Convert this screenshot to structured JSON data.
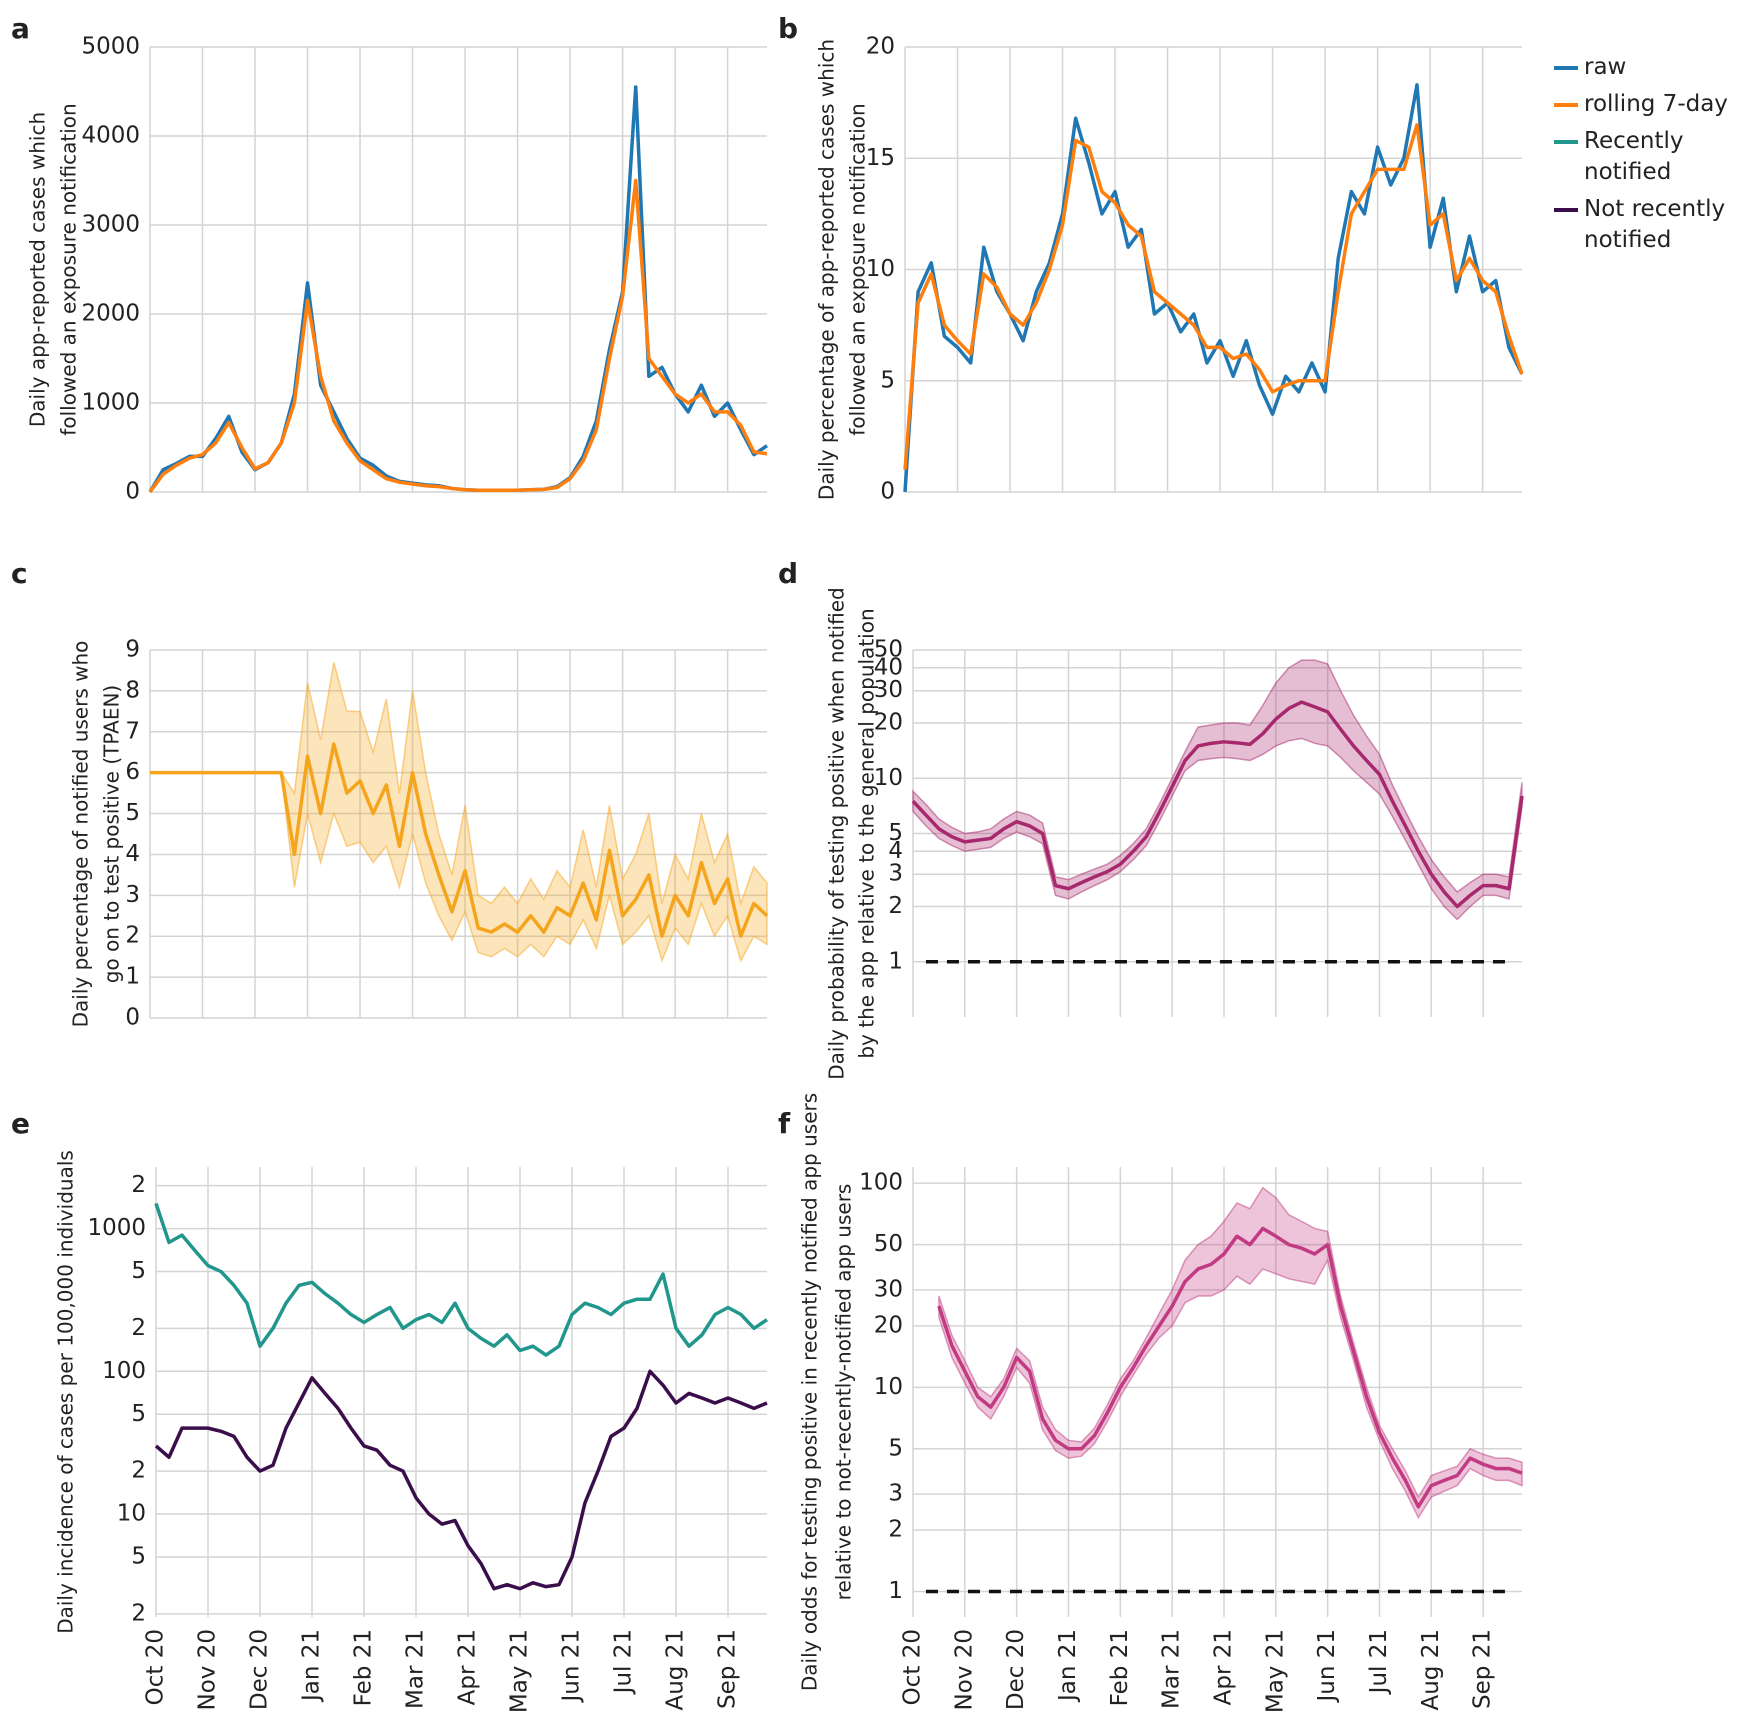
{
  "chart_data": [
    {
      "type": "line",
      "label": "a",
      "ylabel": [
        "Daily app-reported cases which",
        "followed an exposure notification"
      ],
      "ylim": [
        0,
        5000
      ],
      "yticks": [
        0,
        1000,
        2000,
        3000,
        4000,
        5000
      ],
      "grid": true,
      "series": [
        {
          "name": "raw",
          "color": "#1f77b4",
          "values": [
            0,
            250,
            320,
            400,
            400,
            600,
            850,
            450,
            250,
            330,
            550,
            1100,
            2350,
            1200,
            900,
            600,
            380,
            300,
            180,
            120,
            100,
            80,
            70,
            40,
            25,
            20,
            20,
            20,
            20,
            25,
            30,
            60,
            160,
            400,
            800,
            1600,
            2250,
            4550,
            1300,
            1400,
            1100,
            900,
            1200,
            850,
            1000,
            700,
            420,
            520
          ]
        },
        {
          "name": "rolling 7-day",
          "color": "#ff7f0e",
          "values": [
            0,
            200,
            300,
            380,
            420,
            550,
            780,
            500,
            260,
            330,
            550,
            1000,
            2150,
            1300,
            800,
            550,
            350,
            250,
            150,
            110,
            90,
            70,
            60,
            40,
            25,
            20,
            20,
            20,
            20,
            25,
            30,
            50,
            150,
            350,
            700,
            1500,
            2200,
            3500,
            1500,
            1300,
            1100,
            1000,
            1100,
            900,
            900,
            750,
            450,
            430
          ]
        }
      ]
    },
    {
      "type": "line",
      "label": "b",
      "ylabel": [
        "Daily percentage of app-reported cases which",
        "followed an exposure notification"
      ],
      "ylim": [
        0,
        20
      ],
      "yticks": [
        0,
        5,
        10,
        15,
        20
      ],
      "grid": true,
      "series": [
        {
          "name": "raw",
          "color": "#1f77b4",
          "values": [
            0,
            9,
            10.3,
            7,
            6.5,
            5.8,
            11,
            9,
            8,
            6.8,
            9,
            10.3,
            12.5,
            16.8,
            14.8,
            12.5,
            13.5,
            11,
            11.8,
            8,
            8.5,
            7.2,
            8,
            5.8,
            6.8,
            5.2,
            6.8,
            4.8,
            3.5,
            5.2,
            4.5,
            5.8,
            4.5,
            10.5,
            13.5,
            12.5,
            15.5,
            13.8,
            15,
            18.3,
            11,
            13.2,
            9,
            11.5,
            9,
            9.5,
            6.5,
            5.3
          ]
        },
        {
          "name": "rolling 7-day",
          "color": "#ff7f0e",
          "values": [
            1,
            8.5,
            9.8,
            7.5,
            6.8,
            6.2,
            9.8,
            9.2,
            8,
            7.5,
            8.5,
            10,
            12,
            15.8,
            15.5,
            13.5,
            13,
            12,
            11.5,
            9,
            8.5,
            8,
            7.5,
            6.5,
            6.5,
            6,
            6.2,
            5.5,
            4.5,
            4.8,
            5,
            5,
            5,
            9,
            12.5,
            13.5,
            14.5,
            14.5,
            14.5,
            16.5,
            12,
            12.5,
            9.5,
            10.5,
            9.5,
            9,
            7,
            5.3
          ]
        }
      ]
    },
    {
      "type": "line",
      "label": "c",
      "ylabel": [
        "Daily percentage of notified users who",
        "go on to test positive (TPAEN)"
      ],
      "ylim": [
        0,
        9
      ],
      "yticks": [
        0,
        1,
        2,
        3,
        4,
        5,
        6,
        7,
        8,
        9
      ],
      "grid": true,
      "series": [
        {
          "color": "#f5a51d",
          "values": [
            6,
            6,
            6,
            6,
            6,
            6,
            6,
            6,
            6,
            6,
            6,
            4,
            6.4,
            5,
            6.7,
            5.5,
            5.8,
            5,
            5.7,
            4.2,
            6,
            4.5,
            3.5,
            2.6,
            3.6,
            2.2,
            2.1,
            2.3,
            2.1,
            2.5,
            2.1,
            2.7,
            2.5,
            3.3,
            2.4,
            4.1,
            2.5,
            2.9,
            3.5,
            2,
            3,
            2.5,
            3.8,
            2.8,
            3.4,
            2,
            2.8,
            2.5
          ],
          "upper": [
            6,
            6,
            6,
            6,
            6,
            6,
            6,
            6,
            6,
            6,
            6,
            5.5,
            8.2,
            6.8,
            8.7,
            7.5,
            7.5,
            6.5,
            7.8,
            5.5,
            8,
            6,
            4.5,
            3.5,
            5.2,
            3,
            2.8,
            3.2,
            2.8,
            3.4,
            2.9,
            3.6,
            3.2,
            4.6,
            3.2,
            5.2,
            3.4,
            4,
            5,
            2.8,
            4,
            3.4,
            5,
            3.8,
            4.5,
            2.8,
            3.7,
            3.3
          ],
          "lower": [
            6,
            6,
            6,
            6,
            6,
            6,
            6,
            6,
            6,
            6,
            6,
            3.2,
            5,
            3.8,
            5,
            4.2,
            4.3,
            3.8,
            4.2,
            3.2,
            4.5,
            3.3,
            2.5,
            1.9,
            2.6,
            1.6,
            1.5,
            1.7,
            1.5,
            1.8,
            1.5,
            2,
            1.8,
            2.4,
            1.7,
            3,
            1.8,
            2.1,
            2.5,
            1.4,
            2.2,
            1.8,
            2.8,
            2,
            2.5,
            1.4,
            2,
            1.8
          ]
        }
      ]
    },
    {
      "type": "line",
      "label": "d",
      "ylabel": [
        "Daily probability of testing positive when notified",
        "by the app relative to the general population"
      ],
      "log": true,
      "ylim": [
        0.5,
        50
      ],
      "yticks": [
        1,
        2,
        3,
        4,
        5,
        10,
        20,
        30,
        40,
        50
      ],
      "grid": true,
      "hline": 1,
      "series": [
        {
          "color": "#a8286e",
          "values": [
            7.5,
            6.3,
            5.3,
            4.8,
            4.5,
            4.6,
            4.7,
            5.3,
            5.8,
            5.5,
            5,
            2.6,
            2.5,
            2.7,
            2.9,
            3.1,
            3.4,
            4,
            4.8,
            6.5,
            9,
            12.5,
            15,
            15.5,
            15.8,
            15.6,
            15.3,
            17.5,
            21,
            24,
            26,
            24.5,
            23,
            18.5,
            15,
            12.5,
            10.5,
            7.5,
            5.5,
            4,
            3,
            2.4,
            2,
            2.3,
            2.6,
            2.6,
            2.5,
            8
          ],
          "upper": [
            8.5,
            7.2,
            6,
            5.4,
            5,
            5.1,
            5.3,
            6,
            6.6,
            6.3,
            5.7,
            2.9,
            2.8,
            3,
            3.2,
            3.4,
            3.8,
            4.4,
            5.3,
            7.2,
            10,
            14,
            19,
            19.5,
            20,
            20,
            19.5,
            25,
            33,
            40,
            44,
            44,
            42,
            30,
            22,
            17,
            13.5,
            9.2,
            6.6,
            4.8,
            3.6,
            2.9,
            2.4,
            2.7,
            3,
            3,
            2.9,
            9.5
          ],
          "lower": [
            6.6,
            5.5,
            4.7,
            4.3,
            4,
            4.1,
            4.2,
            4.7,
            5.1,
            4.8,
            4.4,
            2.3,
            2.2,
            2.4,
            2.6,
            2.8,
            3.1,
            3.6,
            4.3,
            5.8,
            8,
            11,
            12.5,
            12.8,
            13,
            12.8,
            12.5,
            13.5,
            15,
            16,
            16.5,
            15.5,
            15,
            13,
            11,
            9.5,
            8.2,
            6.2,
            4.6,
            3.4,
            2.5,
            2,
            1.7,
            2,
            2.3,
            2.3,
            2.2,
            7
          ]
        }
      ]
    },
    {
      "type": "line",
      "label": "e",
      "ylabel": [
        "Daily incidence of cases per 100,000 individuals"
      ],
      "log": true,
      "ylim": [
        1.9,
        2700
      ],
      "grid": true,
      "yticks": [
        {
          "value": 2,
          "label": "2"
        },
        {
          "value": 5,
          "label": "5"
        },
        10,
        {
          "value": 20,
          "label": "2"
        },
        {
          "value": 50,
          "label": "5"
        },
        100,
        {
          "value": 200,
          "label": "2"
        },
        {
          "value": 500,
          "label": "5"
        },
        1000,
        {
          "value": 2000,
          "label": "2"
        }
      ],
      "categories": [
        "Oct 20",
        null,
        null,
        null,
        "Nov 20",
        null,
        null,
        null,
        "Dec 20",
        null,
        null,
        null,
        "Jan 21",
        null,
        null,
        null,
        "Feb 21",
        null,
        null,
        null,
        "Mar 21",
        null,
        null,
        null,
        "Apr 21",
        null,
        null,
        null,
        "May 21",
        null,
        null,
        null,
        "Jun 21",
        null,
        null,
        null,
        "Jul 21",
        null,
        null,
        null,
        "Aug 21",
        null,
        null,
        null,
        "Sep 21",
        null,
        null,
        null
      ],
      "series": [
        {
          "name": "Recently notified",
          "color": "#20968c",
          "values": [
            1500,
            800,
            900,
            700,
            550,
            500,
            400,
            300,
            150,
            200,
            300,
            400,
            420,
            350,
            300,
            250,
            220,
            250,
            280,
            200,
            230,
            250,
            220,
            300,
            200,
            170,
            150,
            180,
            140,
            150,
            130,
            150,
            250,
            300,
            280,
            250,
            300,
            320,
            320,
            480,
            200,
            150,
            180,
            250,
            280,
            250,
            200,
            230
          ]
        },
        {
          "name": "Not recently notified",
          "color": "#3a0e4a",
          "values": [
            30,
            25,
            40,
            40,
            40,
            38,
            35,
            25,
            20,
            22,
            40,
            60,
            90,
            70,
            55,
            40,
            30,
            28,
            22,
            20,
            13,
            10,
            8.5,
            9,
            6,
            4.5,
            3,
            3.2,
            3,
            3.3,
            3.1,
            3.2,
            5,
            12,
            20,
            35,
            40,
            55,
            100,
            80,
            60,
            70,
            65,
            60,
            65,
            60,
            55,
            60
          ]
        }
      ]
    },
    {
      "type": "line",
      "label": "f",
      "ylabel": [
        "Daily odds for testing positive in recently notified app users",
        "relative to not-recently-notified app users"
      ],
      "log": true,
      "ylim": [
        0.75,
        120
      ],
      "yticks": [
        1,
        2,
        3,
        5,
        10,
        20,
        30,
        50,
        100
      ],
      "grid": true,
      "hline": 1,
      "categories": [
        "Oct 20",
        null,
        null,
        null,
        "Nov 20",
        null,
        null,
        null,
        "Dec 20",
        null,
        null,
        null,
        "Jan 21",
        null,
        null,
        null,
        "Feb 21",
        null,
        null,
        null,
        "Mar 21",
        null,
        null,
        null,
        "Apr 21",
        null,
        null,
        null,
        "May 21",
        null,
        null,
        null,
        "Jun 21",
        null,
        null,
        null,
        "Jul 21",
        null,
        null,
        null,
        "Aug 21",
        null,
        null,
        null,
        "Sep 21",
        null,
        null,
        null
      ],
      "series": [
        {
          "color": "#c23a82",
          "values": [
            null,
            null,
            25,
            16,
            12,
            9,
            8,
            10,
            14,
            12,
            7,
            5.5,
            5,
            5,
            5.8,
            7.5,
            10,
            12.5,
            16,
            20,
            25,
            33,
            38,
            40,
            45,
            55,
            50,
            60,
            55,
            50,
            48,
            45,
            50,
            25,
            15,
            9,
            6,
            4.5,
            3.5,
            2.6,
            3.3,
            3.5,
            3.7,
            4.5,
            4.2,
            4,
            4,
            3.8
          ],
          "upper": [
            null,
            null,
            28,
            18,
            13.5,
            10,
            9,
            11,
            15.5,
            13.5,
            8,
            6.2,
            5.5,
            5.4,
            6.3,
            8.2,
            11,
            13.5,
            17.5,
            23,
            30,
            42,
            50,
            55,
            65,
            80,
            75,
            95,
            85,
            70,
            65,
            60,
            58,
            28,
            16.5,
            10,
            6.5,
            5,
            3.9,
            2.9,
            3.7,
            3.9,
            4.1,
            5,
            4.7,
            4.5,
            4.5,
            4.3
          ],
          "lower": [
            null,
            null,
            22,
            14,
            10.5,
            8,
            7,
            9,
            12.5,
            10.5,
            6.2,
            4.9,
            4.5,
            4.6,
            5.3,
            6.8,
            9,
            11.5,
            14.5,
            17.5,
            20,
            26,
            28,
            28,
            30,
            35,
            32,
            38,
            36,
            34,
            33,
            32,
            42,
            22,
            13.5,
            8,
            5.5,
            4,
            3.1,
            2.3,
            2.9,
            3.1,
            3.3,
            4,
            3.7,
            3.5,
            3.5,
            3.3
          ]
        }
      ]
    }
  ]
}
